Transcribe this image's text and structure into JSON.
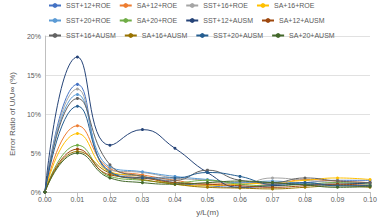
{
  "chart_data": {
    "type": "line",
    "x_label": "y/L(m)",
    "y_label": "Error Ratio of U/U∞ (%)",
    "x": [
      0,
      0.01,
      0.02,
      0.03,
      0.04,
      0.05,
      0.06,
      0.07,
      0.08,
      0.09,
      0.1
    ],
    "xlim": [
      0,
      0.1
    ],
    "xticks": [
      {
        "value": 0,
        "label": "0.00"
      },
      {
        "value": 0.01,
        "label": "0.01"
      },
      {
        "value": 0.02,
        "label": "0.02"
      },
      {
        "value": 0.03,
        "label": "0.03"
      },
      {
        "value": 0.04,
        "label": "0.04"
      },
      {
        "value": 0.05,
        "label": "0.05"
      },
      {
        "value": 0.06,
        "label": "0.06"
      },
      {
        "value": 0.07,
        "label": "0.07"
      },
      {
        "value": 0.08,
        "label": "0.08"
      },
      {
        "value": 0.09,
        "label": "0.09"
      },
      {
        "value": 0.1,
        "label": "0.10"
      }
    ],
    "ylim": [
      0,
      20
    ],
    "yticks": [
      {
        "value": 0,
        "label": "0%"
      },
      {
        "value": 5,
        "label": "5%"
      },
      {
        "value": 10,
        "label": "10%"
      },
      {
        "value": 15,
        "label": "15%"
      },
      {
        "value": 20,
        "label": "20%"
      }
    ],
    "grid": true,
    "legend": "top",
    "marker": "circle",
    "line_style": "smooth",
    "series": [
      {
        "name": "SST+12+ROE",
        "color": "#4472c4",
        "values": [
          0,
          13.8,
          2.5,
          2.0,
          1.2,
          0.8,
          0.6,
          1.0,
          1.2,
          1.5,
          1.5
        ]
      },
      {
        "name": "SA+12+ROE",
        "color": "#ed7d31",
        "values": [
          0,
          8.5,
          3.0,
          2.2,
          1.5,
          1.0,
          1.2,
          1.0,
          1.6,
          1.4,
          1.2
        ]
      },
      {
        "name": "SST+16+ROE",
        "color": "#a5a5a5",
        "values": [
          0,
          13.2,
          2.8,
          2.5,
          1.8,
          1.5,
          1.0,
          1.8,
          1.5,
          1.2,
          1.0
        ]
      },
      {
        "name": "SA+16+ROE",
        "color": "#ffc000",
        "values": [
          0,
          7.5,
          2.6,
          2.0,
          1.0,
          0.8,
          1.0,
          1.2,
          1.5,
          1.8,
          1.6
        ]
      },
      {
        "name": "SST+20+ROE",
        "color": "#5b9bd5",
        "values": [
          0,
          12.5,
          3.2,
          2.6,
          2.0,
          1.6,
          1.2,
          1.4,
          1.0,
          0.8,
          0.8
        ]
      },
      {
        "name": "SA+20+ROE",
        "color": "#70ad47",
        "values": [
          0,
          6.0,
          2.0,
          1.5,
          1.2,
          1.5,
          1.0,
          0.8,
          1.0,
          1.2,
          1.0
        ]
      },
      {
        "name": "SST+12+AUSM",
        "color": "#264478",
        "values": [
          0,
          17.3,
          6.0,
          8.0,
          5.6,
          2.5,
          0.6,
          0.8,
          1.0,
          1.0,
          1.2
        ]
      },
      {
        "name": "SA+12+AUSM",
        "color": "#9e480e",
        "values": [
          0,
          5.5,
          2.2,
          1.8,
          1.2,
          1.0,
          0.8,
          0.6,
          0.8,
          1.0,
          0.8
        ]
      },
      {
        "name": "SST+16+AUSM",
        "color": "#636363",
        "values": [
          0,
          12.0,
          3.5,
          2.0,
          1.5,
          2.8,
          1.5,
          1.2,
          1.8,
          1.4,
          1.2
        ]
      },
      {
        "name": "SA+16+AUSM",
        "color": "#997300",
        "values": [
          0,
          5.2,
          2.4,
          1.6,
          1.0,
          0.6,
          0.5,
          0.4,
          0.6,
          0.8,
          0.6
        ]
      },
      {
        "name": "SST+20+AUSM",
        "color": "#255e91",
        "values": [
          0,
          11.0,
          2.6,
          1.8,
          1.8,
          2.5,
          2.0,
          1.0,
          1.2,
          0.8,
          0.8
        ]
      },
      {
        "name": "SA+20+AUSM",
        "color": "#43682b",
        "values": [
          0,
          5.0,
          1.8,
          1.2,
          1.0,
          1.2,
          1.4,
          1.2,
          0.9,
          0.6,
          0.7
        ]
      }
    ]
  }
}
